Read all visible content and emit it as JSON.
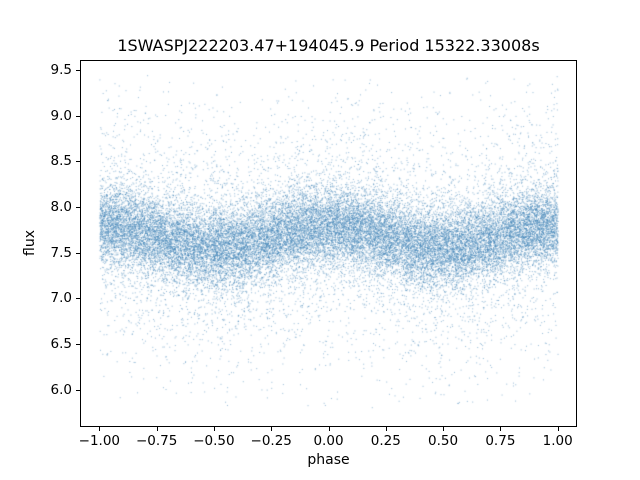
{
  "figure": {
    "title": "1SWASPJ222203.47+194045.9 Period 15322.33008s"
  },
  "chart_data": {
    "type": "scatter",
    "title": "1SWASPJ222203.47+194045.9 Period 15322.33008s",
    "xlabel": "phase",
    "ylabel": "flux",
    "xlim": [
      -1.08,
      1.08
    ],
    "ylim": [
      5.6,
      9.6
    ],
    "xticks": [
      -1.0,
      -0.75,
      -0.5,
      -0.25,
      0.0,
      0.25,
      0.5,
      0.75,
      1.0
    ],
    "yticks": [
      6.0,
      6.5,
      7.0,
      7.5,
      8.0,
      8.5,
      9.0,
      9.5
    ],
    "grid": false,
    "legend": "none",
    "marker_color": "#3b7fb5",
    "marker_alpha": 0.55,
    "marker_size_px": 1,
    "n_points": 30000,
    "generator": {
      "description": "folded light curve: flux = base + amplitude*cos(2*pi*phase) + noise; noise is gaussian mixture (core band plus sparse broad tail), phase uniform on [-1,1]",
      "seed": 20220347,
      "phase_range": [
        -1.0,
        1.0
      ],
      "base_flux": 7.68,
      "modulation_amplitude": 0.12,
      "core_sigma": 0.22,
      "tail_sigma": 0.72,
      "tail_fraction": 0.2,
      "flux_min_visible": 5.8,
      "flux_max_visible": 9.45
    }
  }
}
